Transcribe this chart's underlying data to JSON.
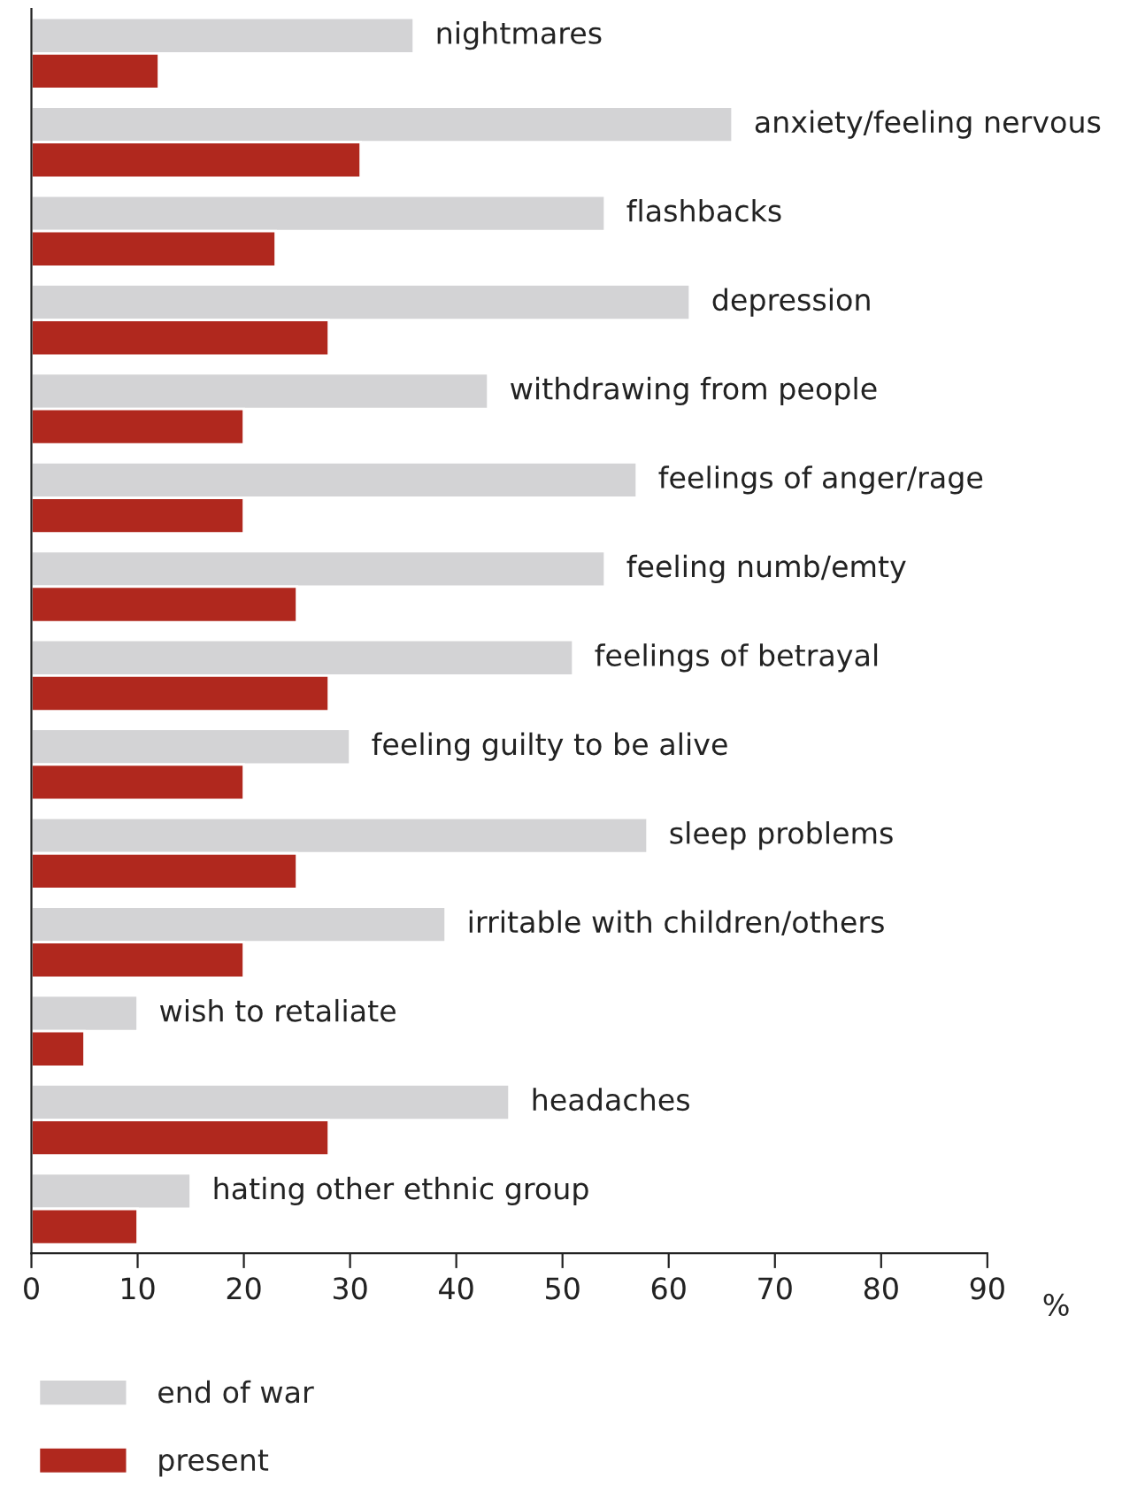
{
  "chart_data": {
    "type": "bar",
    "orientation": "horizontal",
    "xlabel": "%",
    "categories": [
      "nightmares",
      "anxiety/feeling nervous",
      "flashbacks",
      "depression",
      "withdrawing from people",
      "feelings of anger/rage",
      "feeling numb/emty",
      "feelings of betrayal",
      "feeling guilty to be alive",
      "sleep problems",
      "irritable with children/others",
      "wish to retaliate",
      "headaches",
      "hating other ethnic group"
    ],
    "series": [
      {
        "name": "end of war",
        "color": "#d3d3d5",
        "values": [
          36,
          66,
          54,
          62,
          43,
          57,
          54,
          51,
          30,
          58,
          39,
          10,
          45,
          15
        ]
      },
      {
        "name": "present",
        "color": "#b0281e",
        "values": [
          12,
          31,
          23,
          28,
          20,
          20,
          25,
          28,
          20,
          25,
          20,
          5,
          28,
          10
        ]
      }
    ],
    "xlim": [
      0,
      90
    ],
    "xticks": [
      0,
      10,
      20,
      30,
      40,
      50,
      60,
      70,
      80,
      90
    ],
    "grid": false,
    "legend": "bottom left"
  }
}
